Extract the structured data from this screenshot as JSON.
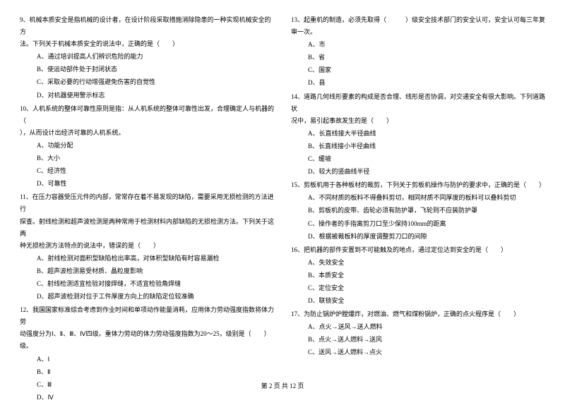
{
  "left": {
    "q9": {
      "text1": "9、机械本质安全是指机械的设计者，在设计阶段采取措施消除隐患的一种实现机械安全的方",
      "text2": "法。下列关于机械本质安全的说法中，正确的是（　　）",
      "a": "A、通过培训提高人们辨识危险的能力",
      "b": "B、使运动部件处于封闭状态",
      "c": "C、采取必要的行动增强避免伤害的自觉性",
      "d": "D、对机器使用警示标志"
    },
    "q10": {
      "text1": "10、人机系统的整体可靠性原则是指：从人机系统的整体可靠性出发，合理确定人与机器的（",
      "text2": "），从而设计出经济可靠的人机系统。",
      "a": "A、功能分配",
      "b": "B、大小",
      "c": "C、经济性",
      "d": "D、可靠性"
    },
    "q11": {
      "text1": "11、在压力容器受压元件的内部，常常存在着不易发现的缺陷，需要采用无损检测的方法进行",
      "text2": "探查。射线检测和超声波检测是两种常用于检测材料内部缺陷的无损检测方法。下列关于这两",
      "text3": "种无损检测方法特点的说法中，错误的是（　　）",
      "a": "A、射线检测对面积型缺陷检出率高，对体积型缺陷有时容易漏检",
      "b": "B、超声波检测易受材质、晶粒度影响",
      "c": "C、射线检测适宜检验对接焊缝，不适宜检验角焊缝",
      "d": "D、超声波检测对位于工件厚度方向上的缺陷定位较准确"
    },
    "q12": {
      "text1": "12、我国国家标准综合考虑到作业时间和单项动作能量消耗，应用体力劳动强度指数将体力劳",
      "text2": "动强度分为Ⅰ、Ⅱ、Ⅲ、Ⅳ四级。重体力劳动的体力劳动强度指数为20～25，级别是（　　）",
      "text3": "级。",
      "a": "A、Ⅰ",
      "b": "B、Ⅱ",
      "c": "C、Ⅲ",
      "d": "D、Ⅳ"
    }
  },
  "right": {
    "q13": {
      "text1": "13、起重机的制造，必须先取得（　　　）级安全技术部门的安全认可，安全认可每三年复",
      "text2": "审一次。",
      "a": "A、市",
      "b": "B、省",
      "c": "C、国家",
      "d": "D、县"
    },
    "q14": {
      "text1": "14、道路几何线形要素的构成是否合理、线形是否协调，对交通安全有很大影响。下列道路状",
      "text2": "况中，易引起事故发生的是（　　）",
      "a": "A、长直线接大半径曲线",
      "b": "B、长直线接小半径曲线",
      "c": "C、缓坡",
      "d": "D、较大的竖曲线半径"
    },
    "q15": {
      "text1": "15、剪板机用于各种板材的裁剪，下列关于剪板机操作与防护的要求中，正确的是（　　）",
      "a": "A、不同材质的板料不得叠料剪切，相同材质不同厚度的板料可以叠料剪切",
      "b": "B、剪板机的皮带、齿轮必须有防护罩，飞轮则不应装防护罩",
      "c": "C、操作者的手指离剪刀口至少保持100mm的距离",
      "d": "D、根据被裁板料的厚度调整剪刀口的间隙"
    },
    "q16": {
      "text1": "16、把机器的部件安置到不可能触及的地点，通过定位达到安全的是（　　）",
      "a": "A、失效安全",
      "b": "B、本质安全",
      "c": "C、定位安全",
      "d": "D、联锁安全"
    },
    "q17": {
      "text1": "17、为防止锅炉炉膛爆炸，对燃油、燃气和煤粉锅炉，正确的点火程序是（　　）",
      "a": "A、点火→送风→送人燃料",
      "b": "B、点火→送人燃料→送风",
      "c": "C、送风→送人燃料→点火"
    }
  },
  "footer": "第 2 页 共 12 页"
}
